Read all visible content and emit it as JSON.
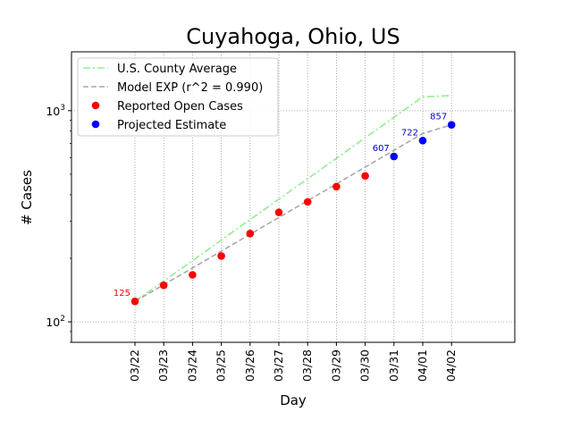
{
  "chart_data": {
    "type": "line",
    "title": "Cuyahoga, Ohio, US",
    "xlabel": "Day",
    "ylabel": "# Cases",
    "yscale": "log",
    "ylim": [
      80,
      1900
    ],
    "yticks": [
      {
        "value": 100,
        "base": "10",
        "exp": "2"
      },
      {
        "value": 1000,
        "base": "10",
        "exp": "3"
      }
    ],
    "grid": true,
    "legend_position": "upper-left",
    "categories": [
      "03/22",
      "03/23",
      "03/24",
      "03/25",
      "03/26",
      "03/27",
      "03/28",
      "03/29",
      "03/30",
      "03/31",
      "04/01",
      "04/02"
    ],
    "series": [
      {
        "name": "U.S. County Average",
        "kind": "line",
        "style": "dashdot",
        "color": "#90ee90",
        "values": [
          125,
          156,
          195,
          244,
          305,
          381,
          476,
          595,
          744,
          930,
          1163,
          1180
        ]
      },
      {
        "name": "Model EXP (r^2 = 0.990)",
        "kind": "line",
        "style": "dashed",
        "color": "#a9a9a9",
        "values": [
          125,
          150,
          180,
          216,
          260,
          312,
          375,
          450,
          541,
          649,
          780,
          857
        ]
      },
      {
        "name": "Reported Open Cases",
        "kind": "points",
        "color": "#ff0000",
        "values": [
          125,
          149,
          167,
          205,
          262,
          330,
          370,
          437,
          491,
          null,
          null,
          null
        ]
      },
      {
        "name": "Projected Estimate",
        "kind": "points",
        "color": "#0000ff",
        "values": [
          null,
          null,
          null,
          null,
          null,
          null,
          null,
          null,
          null,
          607,
          722,
          857
        ]
      }
    ],
    "annotations": [
      {
        "category": "03/22",
        "value": 125,
        "text": "125",
        "color": "#ff0000"
      },
      {
        "category": "03/31",
        "value": 607,
        "text": "607",
        "color": "#0000cc"
      },
      {
        "category": "04/01",
        "value": 722,
        "text": "722",
        "color": "#0000cc"
      },
      {
        "category": "04/02",
        "value": 857,
        "text": "857",
        "color": "#0000cc"
      }
    ]
  }
}
